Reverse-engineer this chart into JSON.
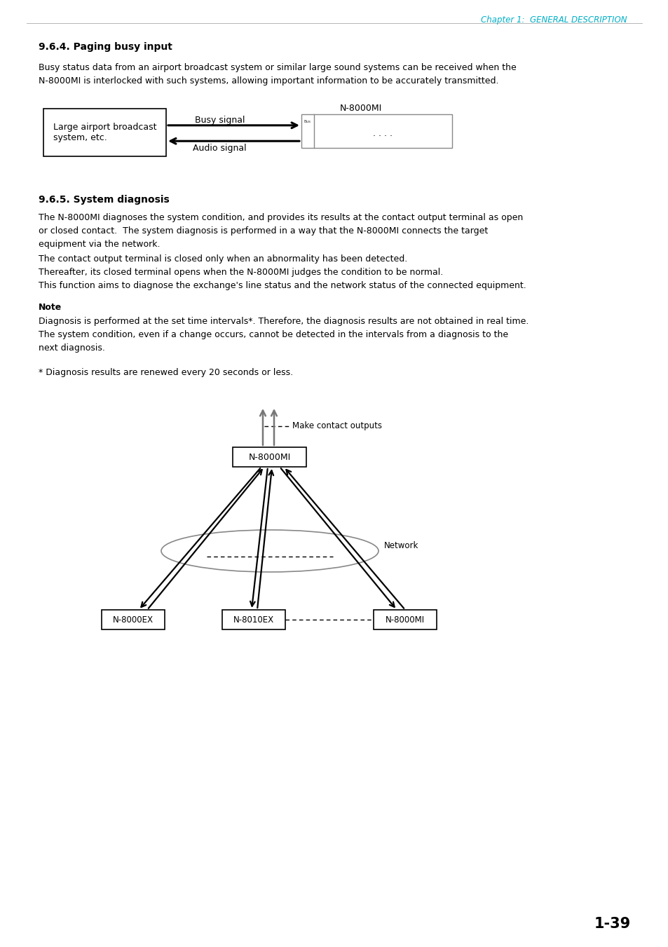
{
  "bg_color": "#ffffff",
  "chapter_header": "Chapter 1:  GENERAL DESCRIPTION",
  "chapter_header_color": "#00b0c8",
  "section1_title": "9.6.4. Paging busy input",
  "section1_body_line1": "Busy status data from an airport broadcast system or similar large sound systems can be received when the",
  "section1_body_line2": "N-8000MI is interlocked with such systems, allowing important information to be accurately transmitted.",
  "diag1": {
    "left_box_text": "Large airport broadcast\nsystem, etc.",
    "right_box_label": "N-8000MI",
    "arrow1_label": "Busy signal",
    "arrow2_label": "Audio signal",
    "right_box_inner": ". . . ."
  },
  "section2_title": "9.6.5. System diagnosis",
  "section2_para1_line1": "The N-8000MI diagnoses the system condition, and provides its results at the contact output terminal as open",
  "section2_para1_line2": "or closed contact.  The system diagnosis is performed in a way that the N-8000MI connects the target",
  "section2_para1_line3": "equipment via the network.",
  "section2_para2_line1": "The contact output terminal is closed only when an abnormality has been detected.",
  "section2_para2_line2": "Thereafter, its closed terminal opens when the N-8000MI judges the condition to be normal.",
  "section2_para2_line3": "This function aims to diagnose the exchange's line status and the network status of the connected equipment.",
  "note_label": "Note",
  "note_line1": "Diagnosis is performed at the set time intervals*. Therefore, the diagnosis results are not obtained in real time.",
  "note_line2": "The system condition, even if a change occurs, cannot be detected in the intervals from a diagnosis to the",
  "note_line3": "next diagnosis.",
  "footnote": "* Diagnosis results are renewed every 20 seconds or less.",
  "diag2": {
    "center_box": "N-8000MI",
    "contact_label": "Make contact outputs",
    "network_label": "Network",
    "box1": "N-8000EX",
    "box2": "N-8010EX",
    "box3": "N-8000MI"
  },
  "page_number": "1-39"
}
